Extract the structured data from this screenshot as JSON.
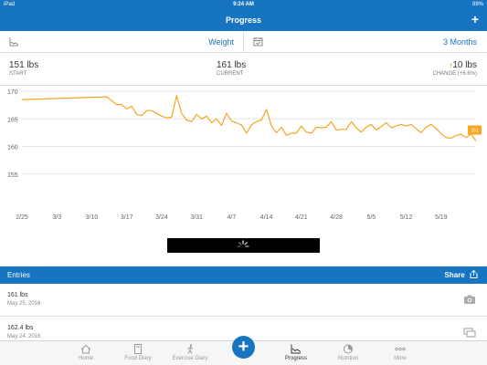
{
  "status_bar": {
    "device": "iPad",
    "time": "9:24 AM",
    "battery": "89%"
  },
  "nav": {
    "title": "Progress",
    "add_label": "+"
  },
  "selector": {
    "metric": "Weight",
    "range": "3 Months"
  },
  "stats": {
    "start": {
      "value": "151 lbs",
      "label": "START"
    },
    "current": {
      "value": "161 lbs",
      "label": "CURRENT"
    },
    "change": {
      "arrow": "↑",
      "value": "10 lbs",
      "label": "CHANGE (+6.6%)"
    }
  },
  "chart_data": {
    "type": "line",
    "x_tick_labels": [
      "2/25",
      "3/3",
      "3/10",
      "3/17",
      "3/24",
      "3/31",
      "4/7",
      "4/14",
      "4/21",
      "4/28",
      "5/5",
      "5/12",
      "5/19"
    ],
    "y_tick_labels": [
      "170",
      "165",
      "160",
      "155"
    ],
    "ylim": [
      150,
      171
    ],
    "x_range_days": [
      0,
      91
    ],
    "grid": true,
    "callout": "161",
    "series_color": "#f5a623",
    "series": [
      {
        "values": [
          [
            0,
            168.5
          ],
          [
            17,
            169.0
          ],
          [
            19,
            167.6
          ],
          [
            20,
            167.6
          ],
          [
            21,
            166.8
          ],
          [
            22,
            167.3
          ],
          [
            23,
            165.8
          ],
          [
            24,
            165.6
          ],
          [
            25,
            166.5
          ],
          [
            26,
            166.5
          ],
          [
            27,
            166.0
          ],
          [
            28,
            165.5
          ],
          [
            29,
            165.2
          ],
          [
            30,
            165.3
          ],
          [
            31,
            169.2
          ],
          [
            32,
            166.0
          ],
          [
            33,
            164.8
          ],
          [
            34,
            164.5
          ],
          [
            35,
            165.8
          ],
          [
            36,
            165.0
          ],
          [
            37,
            165.5
          ],
          [
            38,
            164.3
          ],
          [
            39,
            165.0
          ],
          [
            40,
            163.8
          ],
          [
            41,
            166.0
          ],
          [
            42,
            164.6
          ],
          [
            43,
            164.3
          ],
          [
            44,
            163.9
          ],
          [
            45,
            162.4
          ],
          [
            46,
            163.9
          ],
          [
            47,
            164.5
          ],
          [
            48,
            164.8
          ],
          [
            49,
            166.7
          ],
          [
            50,
            163.7
          ],
          [
            51,
            162.5
          ],
          [
            52,
            163.5
          ],
          [
            53,
            162.0
          ],
          [
            54,
            162.4
          ],
          [
            55,
            162.4
          ],
          [
            56,
            163.7
          ],
          [
            57,
            162.6
          ],
          [
            58,
            162.4
          ],
          [
            59,
            163.5
          ],
          [
            60,
            163.4
          ],
          [
            61,
            163.5
          ],
          [
            62,
            164.5
          ],
          [
            63,
            163.0
          ],
          [
            64,
            163.1
          ],
          [
            65,
            163.1
          ],
          [
            66,
            164.5
          ],
          [
            67,
            163.4
          ],
          [
            68,
            162.6
          ],
          [
            69,
            163.5
          ],
          [
            70,
            164.0
          ],
          [
            71,
            163.0
          ],
          [
            72,
            163.6
          ],
          [
            73,
            164.3
          ],
          [
            74,
            163.4
          ],
          [
            75,
            163.7
          ],
          [
            76,
            164.0
          ],
          [
            77,
            163.7
          ],
          [
            78,
            164.0
          ],
          [
            79,
            163.2
          ],
          [
            80,
            162.5
          ],
          [
            81,
            163.5
          ],
          [
            82,
            164.0
          ],
          [
            83,
            163.3
          ],
          [
            84,
            162.3
          ],
          [
            85,
            161.6
          ],
          [
            86,
            161.5
          ],
          [
            87,
            162.0
          ],
          [
            88,
            162.2
          ],
          [
            89,
            161.6
          ],
          [
            90,
            162.3
          ],
          [
            91,
            161.0
          ]
        ]
      }
    ]
  },
  "entries": {
    "title": "Entries",
    "share_label": "Share",
    "items": [
      {
        "weight": "161 lbs",
        "date": "May 25, 2016",
        "icon": "camera-icon"
      },
      {
        "weight": "162.4 lbs",
        "date": "May 24, 2016",
        "icon": "compare-icon"
      }
    ]
  },
  "tabs": [
    {
      "label": "Home",
      "icon": "home-icon"
    },
    {
      "label": "Food Diary",
      "icon": "food-diary-icon"
    },
    {
      "label": "Exercise Diary",
      "icon": "exercise-icon"
    },
    {
      "label": "Progress",
      "icon": "progress-icon",
      "active": true
    },
    {
      "label": "Nutrition",
      "icon": "nutrition-icon"
    },
    {
      "label": "More",
      "icon": "more-icon"
    }
  ],
  "fab_label": "+",
  "colors": {
    "brand": "#1674c0",
    "line": "#f5a623",
    "change_arrow": "#7ab800"
  }
}
